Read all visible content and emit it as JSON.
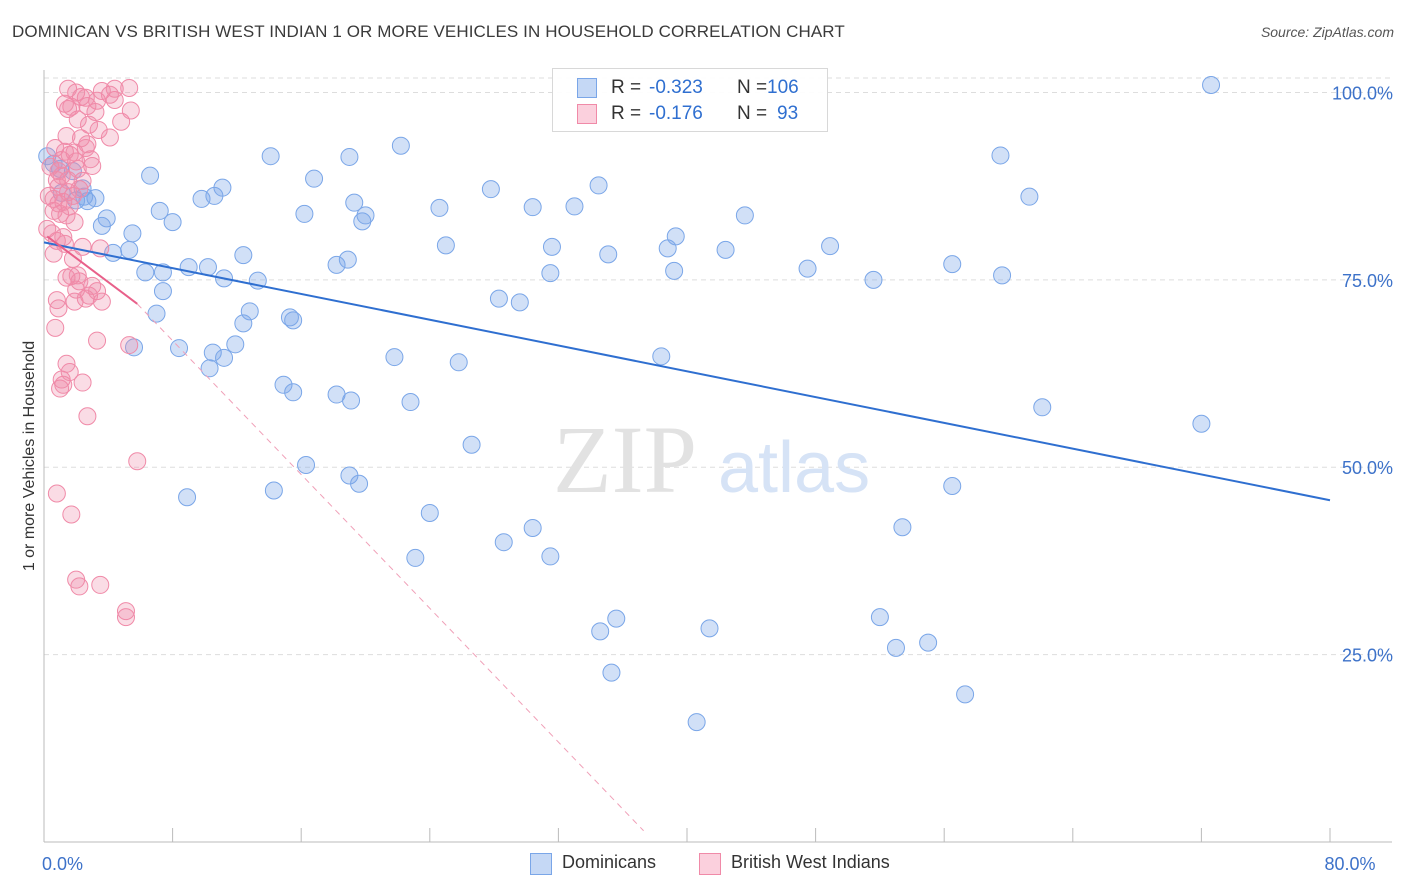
{
  "header": {
    "title": "DOMINICAN VS BRITISH WEST INDIAN 1 OR MORE VEHICLES IN HOUSEHOLD CORRELATION CHART",
    "source": "Source: ZipAtlas.com"
  },
  "legend": {
    "rows": [
      {
        "r_label": "R =",
        "r_value": "-0.323",
        "n_label": "N =",
        "n_value": "106",
        "color": "#7aa6e8"
      },
      {
        "r_label": "R =",
        "r_value": "-0.176",
        "n_label": "N =",
        "n_value": "93",
        "color": "#f08aa8"
      }
    ]
  },
  "bottom_legend": {
    "items": [
      {
        "label": "Dominicans",
        "color": "#7aa6e8"
      },
      {
        "label": "British West Indians",
        "color": "#f08aa8"
      }
    ]
  },
  "watermark": {
    "zip": "ZIP",
    "atlas": "atlas"
  },
  "chart_data": {
    "type": "scatter",
    "ylabel": "1 or more Vehicles in Household",
    "xlim": [
      0,
      80
    ],
    "ylim": [
      0,
      103
    ],
    "x_ticks": [
      0,
      80
    ],
    "x_tick_labels": [
      "0.0%",
      "80.0%"
    ],
    "y_ticks": [
      25,
      50,
      75,
      100
    ],
    "y_tick_labels": [
      "25.0%",
      "50.0%",
      "75.0%",
      "100.0%"
    ],
    "grid": true,
    "legend_position": "top-center",
    "series": [
      {
        "name": "Dominicans",
        "color": "#7aa6e8",
        "trend": {
          "x": [
            0,
            80
          ],
          "y": [
            80.0,
            45.6
          ]
        },
        "points": [
          [
            0.2,
            91.5
          ],
          [
            0.6,
            90.5
          ],
          [
            1.0,
            89.8
          ],
          [
            1.8,
            89.5
          ],
          [
            1.1,
            86.6
          ],
          [
            2.0,
            85.6
          ],
          [
            2.4,
            87.2
          ],
          [
            2.5,
            86.1
          ],
          [
            3.2,
            85.9
          ],
          [
            2.7,
            85.5
          ],
          [
            3.6,
            82.2
          ],
          [
            3.9,
            83.2
          ],
          [
            5.3,
            79.0
          ],
          [
            4.3,
            78.6
          ],
          [
            5.5,
            81.2
          ],
          [
            6.6,
            88.9
          ],
          [
            7.2,
            84.2
          ],
          [
            8.0,
            82.7
          ],
          [
            9.8,
            85.8
          ],
          [
            10.6,
            86.2
          ],
          [
            11.1,
            87.3
          ],
          [
            7.4,
            76.0
          ],
          [
            6.3,
            76.0
          ],
          [
            7.4,
            73.5
          ],
          [
            7.0,
            70.5
          ],
          [
            9.0,
            76.7
          ],
          [
            10.2,
            76.7
          ],
          [
            11.2,
            75.2
          ],
          [
            12.4,
            78.3
          ],
          [
            13.3,
            74.9
          ],
          [
            12.8,
            70.8
          ],
          [
            15.3,
            70.0
          ],
          [
            15.5,
            69.6
          ],
          [
            16.8,
            88.5
          ],
          [
            14.1,
            91.5
          ],
          [
            16.2,
            83.8
          ],
          [
            20.0,
            83.6
          ],
          [
            18.2,
            77.0
          ],
          [
            24.6,
            84.6
          ],
          [
            25.0,
            79.6
          ],
          [
            28.3,
            72.5
          ],
          [
            29.6,
            72.0
          ],
          [
            30.4,
            84.7
          ],
          [
            31.5,
            75.9
          ],
          [
            31.6,
            79.4
          ],
          [
            33.0,
            84.8
          ],
          [
            35.1,
            78.4
          ],
          [
            38.8,
            79.2
          ],
          [
            39.3,
            80.8
          ],
          [
            39.2,
            76.2
          ],
          [
            42.4,
            79.0
          ],
          [
            43.6,
            83.6
          ],
          [
            48.9,
            79.5
          ],
          [
            47.5,
            76.5
          ],
          [
            51.6,
            75.0
          ],
          [
            56.5,
            77.1
          ],
          [
            59.6,
            75.6
          ],
          [
            59.5,
            91.6
          ],
          [
            61.3,
            86.1
          ],
          [
            72.6,
            101.0
          ],
          [
            19.0,
            91.4
          ],
          [
            22.2,
            92.9
          ],
          [
            27.8,
            87.1
          ],
          [
            34.5,
            87.6
          ],
          [
            19.8,
            82.8
          ],
          [
            19.3,
            85.3
          ],
          [
            18.9,
            77.7
          ],
          [
            12.4,
            69.2
          ],
          [
            11.9,
            66.4
          ],
          [
            11.2,
            64.6
          ],
          [
            10.3,
            63.2
          ],
          [
            10.5,
            65.3
          ],
          [
            8.4,
            65.9
          ],
          [
            5.6,
            66.0
          ],
          [
            14.9,
            61.0
          ],
          [
            15.5,
            60.0
          ],
          [
            21.8,
            64.7
          ],
          [
            18.2,
            59.7
          ],
          [
            22.8,
            58.7
          ],
          [
            19.1,
            58.9
          ],
          [
            25.8,
            64.0
          ],
          [
            38.4,
            64.8
          ],
          [
            30.4,
            41.9
          ],
          [
            31.5,
            38.1
          ],
          [
            34.6,
            28.1
          ],
          [
            41.4,
            28.5
          ],
          [
            40.6,
            16.0
          ],
          [
            35.3,
            22.6
          ],
          [
            35.6,
            29.8
          ],
          [
            53.4,
            42.0
          ],
          [
            57.3,
            19.7
          ],
          [
            55.0,
            26.6
          ],
          [
            53.0,
            25.9
          ],
          [
            52.0,
            30.0
          ],
          [
            56.5,
            47.5
          ],
          [
            72.0,
            55.8
          ],
          [
            62.1,
            58.0
          ],
          [
            24.0,
            43.9
          ],
          [
            23.1,
            37.9
          ],
          [
            28.6,
            40.0
          ],
          [
            19.0,
            48.9
          ],
          [
            19.6,
            47.8
          ],
          [
            14.3,
            46.9
          ],
          [
            8.9,
            46.0
          ],
          [
            16.3,
            50.3
          ],
          [
            26.6,
            53.0
          ]
        ]
      },
      {
        "name": "British West Indians",
        "color": "#f08aa8",
        "trend": {
          "x": [
            0.2,
            5.8
          ],
          "y": [
            80.8,
            71.8
          ]
        },
        "dashed_extension": {
          "x": [
            5.8,
            37.3
          ],
          "y": [
            71.8,
            1.5
          ]
        },
        "points": [
          [
            1.5,
            100.5
          ],
          [
            2.0,
            100.0
          ],
          [
            2.3,
            99.4
          ],
          [
            3.6,
            100.2
          ],
          [
            4.1,
            99.7
          ],
          [
            4.4,
            100.5
          ],
          [
            5.3,
            100.6
          ],
          [
            1.3,
            98.5
          ],
          [
            1.7,
            98.1
          ],
          [
            2.7,
            98.2
          ],
          [
            3.2,
            97.4
          ],
          [
            4.4,
            99.0
          ],
          [
            5.4,
            97.6
          ],
          [
            2.1,
            96.4
          ],
          [
            2.8,
            95.7
          ],
          [
            3.4,
            95.0
          ],
          [
            4.1,
            94.0
          ],
          [
            1.4,
            94.2
          ],
          [
            2.3,
            93.9
          ],
          [
            2.7,
            93.1
          ],
          [
            0.7,
            92.6
          ],
          [
            1.3,
            92.1
          ],
          [
            1.6,
            91.7
          ],
          [
            2.0,
            90.8
          ],
          [
            2.9,
            91.1
          ],
          [
            3.0,
            90.2
          ],
          [
            0.4,
            90.1
          ],
          [
            0.9,
            89.5
          ],
          [
            1.1,
            88.9
          ],
          [
            1.5,
            88.3
          ],
          [
            2.4,
            88.2
          ],
          [
            2.2,
            87.1
          ],
          [
            0.3,
            86.2
          ],
          [
            0.6,
            85.8
          ],
          [
            0.9,
            85.2
          ],
          [
            1.2,
            85.4
          ],
          [
            1.6,
            84.8
          ],
          [
            0.6,
            84.2
          ],
          [
            1.0,
            83.8
          ],
          [
            1.4,
            83.6
          ],
          [
            1.9,
            82.7
          ],
          [
            0.2,
            81.8
          ],
          [
            0.5,
            81.2
          ],
          [
            1.2,
            80.7
          ],
          [
            0.8,
            80.2
          ],
          [
            1.3,
            79.8
          ],
          [
            2.4,
            79.4
          ],
          [
            3.5,
            79.2
          ],
          [
            0.6,
            78.5
          ],
          [
            1.8,
            77.8
          ],
          [
            1.4,
            75.3
          ],
          [
            1.7,
            75.5
          ],
          [
            2.2,
            74.8
          ],
          [
            3.0,
            74.2
          ],
          [
            3.3,
            73.5
          ],
          [
            2.0,
            73.7
          ],
          [
            2.6,
            72.5
          ],
          [
            1.9,
            72.1
          ],
          [
            0.8,
            72.3
          ],
          [
            0.9,
            71.2
          ],
          [
            0.7,
            68.6
          ],
          [
            3.3,
            66.9
          ],
          [
            5.3,
            66.3
          ],
          [
            1.4,
            63.8
          ],
          [
            1.6,
            62.7
          ],
          [
            1.1,
            61.7
          ],
          [
            1.2,
            61.0
          ],
          [
            1.0,
            60.5
          ],
          [
            2.4,
            61.3
          ],
          [
            2.7,
            56.8
          ],
          [
            5.8,
            50.8
          ],
          [
            0.8,
            46.5
          ],
          [
            1.7,
            43.7
          ],
          [
            2.0,
            35.0
          ],
          [
            2.2,
            34.1
          ],
          [
            3.5,
            34.3
          ],
          [
            5.1,
            30.8
          ],
          [
            5.1,
            30.0
          ],
          [
            2.1,
            75.6
          ],
          [
            2.8,
            72.9
          ],
          [
            3.6,
            72.1
          ],
          [
            1.5,
            86.7
          ],
          [
            1.8,
            86.2
          ],
          [
            0.9,
            87.4
          ],
          [
            0.8,
            88.3
          ],
          [
            2.1,
            89.8
          ],
          [
            1.1,
            91.0
          ],
          [
            1.9,
            92.0
          ],
          [
            2.6,
            92.6
          ],
          [
            4.8,
            96.1
          ],
          [
            1.5,
            97.8
          ],
          [
            3.3,
            98.9
          ],
          [
            2.6,
            99.3
          ]
        ]
      }
    ]
  }
}
